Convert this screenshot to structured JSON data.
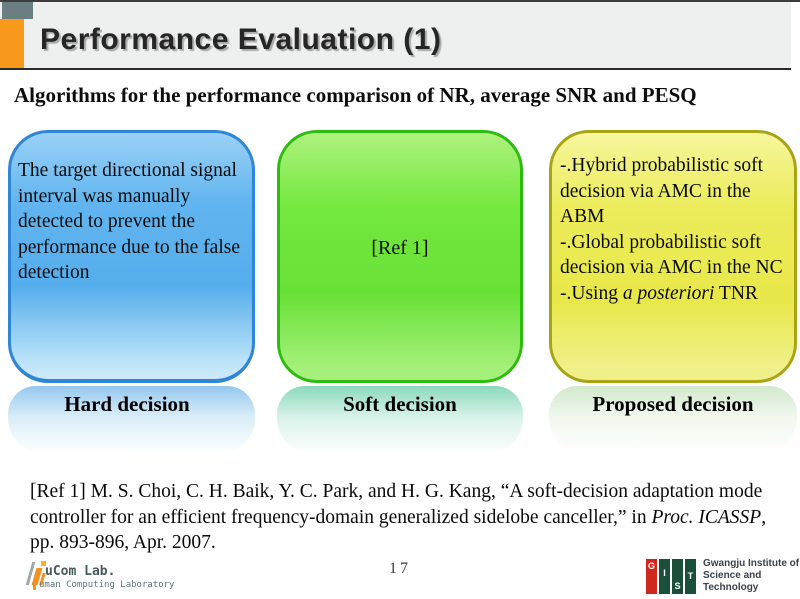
{
  "slide": {
    "title": "Performance Evaluation (1)",
    "subtitle": "Algorithms for the performance comparison of NR, average SNR and PESQ",
    "page_number": "17"
  },
  "accent_colors": {
    "header_bar_orange": "#f9991c",
    "header_square_gray": "#6b7e82",
    "header_background": "#eef0ef"
  },
  "boxes": [
    {
      "label": "Hard decision",
      "body": "The target directional signal interval was manually detected to prevent the performance due to the false detection",
      "fill": "#58b0ee",
      "border": "#2f86d7"
    },
    {
      "label": "Soft decision",
      "body": "[Ref 1]",
      "fill": "#70e83c",
      "border": "#2ebc10"
    },
    {
      "label": "Proposed decision",
      "line1": "-.Hybrid probabilistic soft decision via AMC in the ABM",
      "line2": "-.Global probabilistic soft decision via AMC in the NC",
      "line3_prefix": "-.Using ",
      "line3_italic": "a posteriori",
      "line3_suffix": " TNR",
      "fill": "#e9e94c",
      "border": "#a8a416"
    }
  ],
  "reference": {
    "part1": "[Ref 1] M. S. Choi, C. H. Baik, Y. C. Park, and H. G. Kang, “A soft-decision adaptation mode controller for an efficient frequency-domain generalized sidelobe canceller,”  in ",
    "italic": "Proc. ICASSP",
    "part2": ", pp. 893-896, Apr. 2007."
  },
  "footer": {
    "hucom_title": "uCom Lab.",
    "hucom_subtitle": "uman Computing Laboratory",
    "gist_letters": [
      "G",
      "I",
      "S",
      "T"
    ],
    "gist_line1": "Gwangju Institute of",
    "gist_line2": "Science and Technology",
    "gist_red": "#d0271d",
    "gist_green": "#1b4f3c"
  }
}
